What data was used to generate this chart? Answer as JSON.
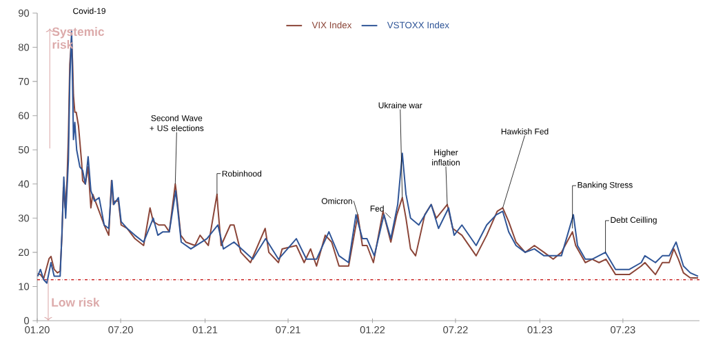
{
  "chart_data": {
    "type": "line",
    "legend": "top",
    "xlim": [
      "2020-01-01",
      "2023-12-15"
    ],
    "ylim": [
      0,
      90
    ],
    "xticks": [
      {
        "value": "2020-01-01",
        "label": "01.20"
      },
      {
        "value": "2020-07-01",
        "label": "07.20"
      },
      {
        "value": "2021-01-01",
        "label": "01.21"
      },
      {
        "value": "2021-07-01",
        "label": "07.21"
      },
      {
        "value": "2022-01-01",
        "label": "01.22"
      },
      {
        "value": "2022-07-01",
        "label": "07.22"
      },
      {
        "value": "2023-01-01",
        "label": "01.23"
      },
      {
        "value": "2023-07-01",
        "label": "07.23"
      }
    ],
    "yticks": [
      0,
      10,
      20,
      30,
      40,
      50,
      60,
      70,
      80,
      90
    ],
    "ref_lines": [
      {
        "axis": "y",
        "value": 12,
        "color": "#c00000",
        "line_style": "dashdot"
      }
    ],
    "annotations": [
      {
        "text": "Covid-19",
        "x": "2020-03-16",
        "y": 85
      },
      {
        "text": "Second Wave + US elections",
        "x": "2020-10-28",
        "y": 40
      },
      {
        "text": "Robinhood",
        "x": "2021-01-27",
        "y": 37
      },
      {
        "text": "Omicron",
        "x": "2021-11-30",
        "y": 31
      },
      {
        "text": "Fed",
        "x": "2022-02-10",
        "y": 30
      },
      {
        "text": "Ukraine war",
        "x": "2022-03-07",
        "y": 36
      },
      {
        "text": "Higher inflation",
        "x": "2022-06-13",
        "y": 34
      },
      {
        "text": "Hawkish Fed",
        "x": "2022-10-12",
        "y": 33
      },
      {
        "text": "Banking Stress",
        "x": "2023-03-13",
        "y": 27
      },
      {
        "text": "Debt Ceilling",
        "x": "2023-05-24",
        "y": 20
      },
      "Systemic risk",
      {
        "text": "Low risk",
        "x": "2020-01-25",
        "y": 12
      }
    ],
    "series": [
      {
        "name": "VIX Index",
        "color": "#8b4538",
        "x": [
          "2020-01-02",
          "2020-01-08",
          "2020-01-15",
          "2020-01-27",
          "2020-01-31",
          "2020-02-07",
          "2020-02-14",
          "2020-02-20",
          "2020-02-24",
          "2020-02-27",
          "2020-03-02",
          "2020-03-06",
          "2020-03-09",
          "2020-03-12",
          "2020-03-16",
          "2020-03-18",
          "2020-03-20",
          "2020-03-23",
          "2020-03-26",
          "2020-03-31",
          "2020-04-07",
          "2020-04-09",
          "2020-04-15",
          "2020-04-21",
          "2020-04-27",
          "2020-05-01",
          "2020-05-15",
          "2020-05-26",
          "2020-06-05",
          "2020-06-11",
          "2020-06-15",
          "2020-06-19",
          "2020-06-26",
          "2020-07-02",
          "2020-07-15",
          "2020-08-01",
          "2020-08-20",
          "2020-09-03",
          "2020-09-10",
          "2020-09-22",
          "2020-10-05",
          "2020-10-15",
          "2020-10-28",
          "2020-10-30",
          "2020-11-09",
          "2020-11-20",
          "2020-12-10",
          "2020-12-21",
          "2021-01-08",
          "2021-01-27",
          "2021-01-29",
          "2021-02-05",
          "2021-02-25",
          "2021-03-05",
          "2021-03-20",
          "2021-04-10",
          "2021-05-12",
          "2021-05-20",
          "2021-06-10",
          "2021-06-18",
          "2021-07-19",
          "2021-08-05",
          "2021-08-19",
          "2021-09-01",
          "2021-09-20",
          "2021-10-04",
          "2021-10-20",
          "2021-11-10",
          "2021-11-26",
          "2021-11-30",
          "2021-12-10",
          "2021-12-20",
          "2022-01-03",
          "2022-01-24",
          "2022-02-10",
          "2022-02-23",
          "2022-03-07",
          "2022-03-15",
          "2022-03-25",
          "2022-04-05",
          "2022-04-25",
          "2022-05-09",
          "2022-05-20",
          "2022-06-13",
          "2022-06-25",
          "2022-07-15",
          "2022-08-15",
          "2022-09-07",
          "2022-09-30",
          "2022-10-12",
          "2022-10-25",
          "2022-11-10",
          "2022-11-30",
          "2022-12-20",
          "2023-01-10",
          "2023-01-30",
          "2023-02-17",
          "2023-03-13",
          "2023-03-20",
          "2023-04-10",
          "2023-04-25",
          "2023-05-10",
          "2023-05-25",
          "2023-06-15",
          "2023-07-15",
          "2023-08-10",
          "2023-08-18",
          "2023-09-10",
          "2023-09-25",
          "2023-10-10",
          "2023-10-20",
          "2023-10-30",
          "2023-11-10",
          "2023-11-25",
          "2023-12-12"
        ],
        "values": [
          13.8,
          13.5,
          12.3,
          18.2,
          18.8,
          15,
          14,
          14.5,
          25,
          39,
          33,
          41,
          54,
          75,
          82.7,
          76,
          66,
          61,
          61,
          57,
          46,
          41,
          40,
          45,
          33,
          37,
          32,
          28,
          25,
          41,
          34,
          35,
          35,
          28,
          27,
          24,
          22,
          33,
          29,
          28,
          28,
          26,
          40,
          38,
          25,
          23,
          22,
          25,
          22,
          37,
          33,
          22,
          28,
          28,
          20,
          17,
          27,
          20,
          17,
          21,
          22,
          17,
          21,
          16,
          25,
          23,
          16,
          16,
          28,
          31,
          22,
          22,
          17,
          32,
          23,
          31,
          36,
          30,
          21,
          19,
          31,
          34,
          30,
          34,
          27,
          25,
          19,
          25,
          32,
          33,
          29,
          23,
          20,
          22,
          20,
          18,
          20,
          26,
          22,
          17,
          18,
          17,
          18,
          13.5,
          13.5,
          16,
          17,
          13.5,
          17,
          17,
          21,
          18,
          14,
          12.5,
          12.5
        ]
      },
      {
        "name": "VSTOXX Index",
        "color": "#2f5597",
        "x": [
          "2020-01-02",
          "2020-01-08",
          "2020-01-15",
          "2020-01-22",
          "2020-01-31",
          "2020-02-07",
          "2020-02-20",
          "2020-02-24",
          "2020-02-28",
          "2020-03-03",
          "2020-03-09",
          "2020-03-12",
          "2020-03-16",
          "2020-03-18",
          "2020-03-20",
          "2020-03-23",
          "2020-03-27",
          "2020-04-03",
          "2020-04-09",
          "2020-04-15",
          "2020-04-21",
          "2020-04-27",
          "2020-05-05",
          "2020-05-15",
          "2020-05-26",
          "2020-06-05",
          "2020-06-12",
          "2020-06-16",
          "2020-06-26",
          "2020-07-02",
          "2020-07-15",
          "2020-08-01",
          "2020-08-20",
          "2020-09-10",
          "2020-09-20",
          "2020-10-01",
          "2020-10-15",
          "2020-10-29",
          "2020-11-10",
          "2020-12-01",
          "2021-01-05",
          "2021-01-29",
          "2021-02-10",
          "2021-03-05",
          "2021-04-15",
          "2021-05-13",
          "2021-06-10",
          "2021-07-19",
          "2021-08-10",
          "2021-09-01",
          "2021-09-28",
          "2021-10-20",
          "2021-11-10",
          "2021-11-26",
          "2021-12-10",
          "2021-12-20",
          "2022-01-05",
          "2022-01-26",
          "2022-02-10",
          "2022-02-25",
          "2022-03-07",
          "2022-03-15",
          "2022-03-25",
          "2022-04-12",
          "2022-05-09",
          "2022-05-25",
          "2022-06-16",
          "2022-06-28",
          "2022-07-15",
          "2022-08-15",
          "2022-09-07",
          "2022-09-28",
          "2022-10-12",
          "2022-10-25",
          "2022-11-10",
          "2022-11-30",
          "2022-12-20",
          "2023-01-10",
          "2023-01-30",
          "2023-02-17",
          "2023-03-15",
          "2023-03-24",
          "2023-04-10",
          "2023-04-25",
          "2023-05-24",
          "2023-06-15",
          "2023-07-15",
          "2023-08-10",
          "2023-08-18",
          "2023-09-10",
          "2023-09-25",
          "2023-10-10",
          "2023-10-25",
          "2023-11-10",
          "2023-11-25",
          "2023-12-12"
        ],
        "values": [
          13,
          15,
          12,
          11,
          17,
          13,
          13,
          26,
          42,
          30,
          47,
          70,
          85,
          70,
          53,
          58,
          50,
          45,
          44,
          40,
          48,
          38,
          35,
          36,
          28,
          27,
          41,
          34,
          36,
          29,
          27,
          25,
          23,
          30,
          25,
          26,
          26,
          38,
          23,
          21,
          24,
          28,
          21,
          23,
          18,
          24,
          18,
          24,
          18,
          18,
          26,
          19,
          17,
          31,
          24,
          24,
          19,
          31,
          24,
          34,
          49,
          37,
          30,
          28,
          34,
          27,
          33,
          25,
          28,
          22,
          28,
          31,
          32,
          26,
          22,
          20,
          21,
          19,
          19,
          19,
          31,
          22,
          18,
          18,
          20,
          15,
          15,
          17,
          19,
          17,
          19,
          19,
          23,
          16,
          14,
          13
        ]
      }
    ]
  }
}
